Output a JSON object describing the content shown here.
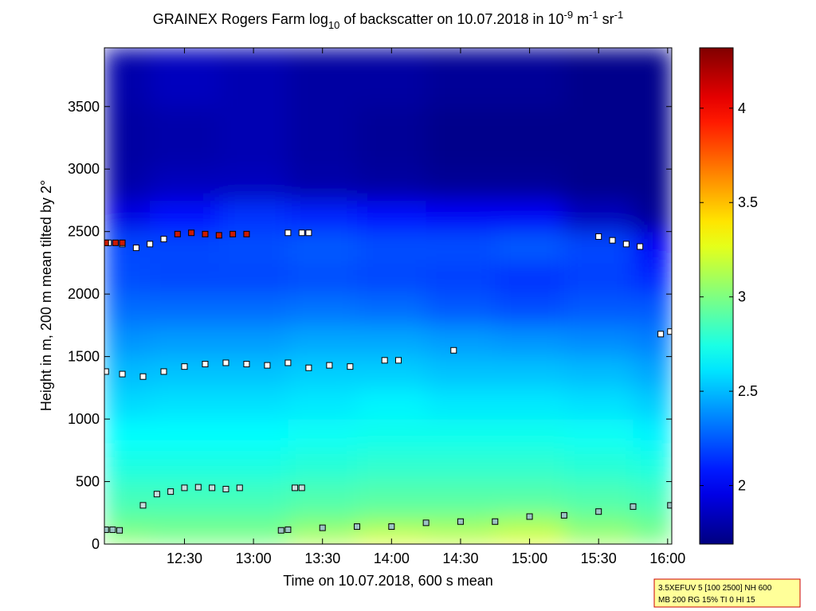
{
  "chart_data": {
    "type": "heatmap",
    "title": [
      "GRAINEX Rogers Farm log",
      "10",
      " of backscatter on 10.07.2018 in 10",
      "-9",
      " m",
      "-1",
      " sr",
      "-1"
    ],
    "title_scripts": [
      "",
      "sub",
      "",
      "sup",
      "",
      "sup",
      "",
      "sup"
    ],
    "xlabel": "Time on 10.07.2018, 600 s mean",
    "ylabel": "Height in m, 200 m mean tilted by 2°",
    "xlim": [
      11.92,
      16.03
    ],
    "xticks": [
      {
        "value": 12.5,
        "label": "12:30"
      },
      {
        "value": 13,
        "label": "13:00"
      },
      {
        "value": 13.5,
        "label": "13:30"
      },
      {
        "value": 14,
        "label": "14:00"
      },
      {
        "value": 14.5,
        "label": "14:30"
      },
      {
        "value": 15,
        "label": "15:00"
      },
      {
        "value": 15.5,
        "label": "15:30"
      },
      {
        "value": 16,
        "label": "16:00"
      }
    ],
    "ylim": [
      0,
      3970
    ],
    "yticks": [
      0,
      500,
      1000,
      1500,
      2000,
      2500,
      3000,
      3500
    ],
    "clim": [
      1.69,
      4.32
    ],
    "cticks": [
      2,
      2.5,
      3,
      3.5,
      4
    ],
    "colormap": "jet",
    "x_edges": [
      11.92,
      12.25,
      12.75,
      13.25,
      13.75,
      14.25,
      14.75,
      15.25,
      15.75,
      16.03
    ],
    "y_edges": [
      0,
      100,
      250,
      500,
      750,
      1000,
      1250,
      1500,
      1750,
      2000,
      2250,
      2500,
      2750,
      3000,
      3500,
      3970
    ],
    "z": [
      [
        3.05,
        3.0,
        3.0,
        3.15,
        3.25,
        3.2,
        3.25,
        3.1,
        3.0
      ],
      [
        2.95,
        2.95,
        2.95,
        3.0,
        3.05,
        3.05,
        3.1,
        3.0,
        2.95
      ],
      [
        2.85,
        2.85,
        2.85,
        2.88,
        2.9,
        2.9,
        2.9,
        2.88,
        2.85
      ],
      [
        2.75,
        2.75,
        2.75,
        2.78,
        2.8,
        2.8,
        2.8,
        2.78,
        2.75
      ],
      [
        2.68,
        2.68,
        2.68,
        2.7,
        2.72,
        2.72,
        2.72,
        2.7,
        2.65
      ],
      [
        2.58,
        2.6,
        2.6,
        2.62,
        2.65,
        2.62,
        2.62,
        2.6,
        2.55
      ],
      [
        2.5,
        2.52,
        2.52,
        2.55,
        2.55,
        2.52,
        2.52,
        2.5,
        2.45
      ],
      [
        2.4,
        2.42,
        2.42,
        2.45,
        2.45,
        2.42,
        2.4,
        2.38,
        2.35
      ],
      [
        2.3,
        2.3,
        2.3,
        2.32,
        2.3,
        2.25,
        2.22,
        2.25,
        2.25
      ],
      [
        2.22,
        2.2,
        2.2,
        2.22,
        2.2,
        2.18,
        2.15,
        2.18,
        2.12
      ],
      [
        2.2,
        2.2,
        2.22,
        2.25,
        2.22,
        2.22,
        2.25,
        2.2,
        2.0
      ],
      [
        1.95,
        2.05,
        2.15,
        2.1,
        2.05,
        2.0,
        2.0,
        1.85,
        1.75
      ],
      [
        1.8,
        1.85,
        1.85,
        1.8,
        1.78,
        1.75,
        1.75,
        1.72,
        1.72
      ],
      [
        1.78,
        1.8,
        1.82,
        1.78,
        1.75,
        1.72,
        1.72,
        1.72,
        1.72
      ],
      [
        1.8,
        1.85,
        1.82,
        1.78,
        1.78,
        1.75,
        1.75,
        1.72,
        1.72
      ]
    ],
    "markers": [
      {
        "color": "#9cc4c4",
        "x": [
          11.93,
          11.98,
          12.03,
          13.2,
          13.25,
          13.5,
          13.75,
          14.0,
          14.25,
          14.5,
          14.75,
          15.0,
          15.25,
          15.5,
          15.75,
          16.02
        ],
        "y": [
          115,
          115,
          110,
          110,
          115,
          130,
          140,
          140,
          170,
          180,
          180,
          220,
          230,
          260,
          300,
          310
        ]
      },
      {
        "color": "#c8dede",
        "x": [
          12.2,
          12.3,
          12.4,
          12.5,
          12.6,
          12.7,
          12.8,
          12.9,
          13.3,
          13.35
        ],
        "y": [
          310,
          400,
          420,
          450,
          455,
          450,
          440,
          450,
          450,
          450
        ]
      },
      {
        "color": "#ffffff",
        "x": [
          11.93,
          12.05,
          12.2,
          12.35,
          12.5,
          12.65,
          12.8,
          12.95,
          13.1,
          13.25,
          13.4,
          13.55,
          13.7,
          13.95,
          14.05,
          14.45,
          15.95,
          16.02
        ],
        "y": [
          1380,
          1360,
          1340,
          1380,
          1420,
          1440,
          1450,
          1440,
          1430,
          1450,
          1410,
          1430,
          1420,
          1470,
          1470,
          1550,
          1680,
          1700
        ]
      },
      {
        "color": "#ffffff",
        "x": [
          11.95,
          12.05,
          12.15,
          12.25,
          12.35,
          13.25,
          13.35,
          13.4,
          15.5,
          15.6,
          15.7,
          15.8
        ],
        "y": [
          2410,
          2400,
          2370,
          2400,
          2440,
          2490,
          2490,
          2490,
          2460,
          2430,
          2400,
          2380
        ]
      },
      {
        "color": "#cc1a00",
        "x": [
          11.93,
          12.0,
          12.05,
          12.45,
          12.55,
          12.65,
          12.75,
          12.85,
          12.95
        ],
        "y": [
          2410,
          2410,
          2410,
          2480,
          2490,
          2480,
          2470,
          2480,
          2480
        ]
      }
    ],
    "footnote": [
      "3.5XEFUV 5 [100 2500] NH 600",
      "MB 200 RG 15% TI 0 HI 15"
    ]
  }
}
